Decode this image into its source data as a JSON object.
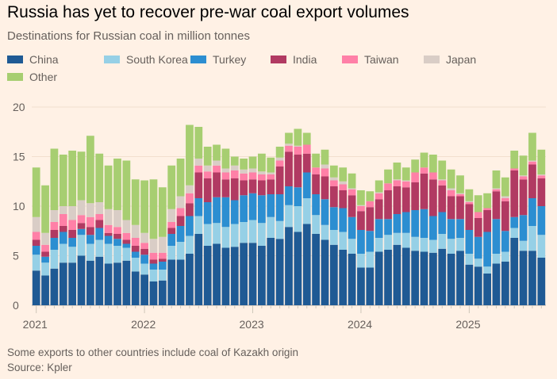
{
  "title": "Russia has yet to recover pre-war coal export volumes",
  "subtitle": "Destinations for Russian coal in million tonnes",
  "footnote": "Some exports to other countries include coal of Kazakh origin",
  "source": "Source: Kpler",
  "chart_data": {
    "type": "bar",
    "stacked": true,
    "title": "Russia has yet to recover pre-war coal export volumes",
    "subtitle": "Destinations for Russian coal in million tonnes",
    "xlabel": "",
    "ylabel": "million tonnes",
    "ylim": [
      0,
      20
    ],
    "yticks": [
      0,
      5,
      10,
      15,
      20
    ],
    "xtick_labels": [
      "2021",
      "2022",
      "2023",
      "2024",
      "2025"
    ],
    "grid": true,
    "legend_position": "top-left",
    "start": "2021-01",
    "categories": [
      "Jan 2021",
      "Feb 2021",
      "Mar 2021",
      "Apr 2021",
      "May 2021",
      "Jun 2021",
      "Jul 2021",
      "Aug 2021",
      "Sep 2021",
      "Oct 2021",
      "Nov 2021",
      "Dec 2021",
      "Jan 2022",
      "Feb 2022",
      "Mar 2022",
      "Apr 2022",
      "May 2022",
      "Jun 2022",
      "Jul 2022",
      "Aug 2022",
      "Sep 2022",
      "Oct 2022",
      "Nov 2022",
      "Dec 2022",
      "Jan 2023",
      "Feb 2023",
      "Mar 2023",
      "Apr 2023",
      "May 2023",
      "Jun 2023",
      "Jul 2023",
      "Aug 2023",
      "Sep 2023",
      "Oct 2023",
      "Nov 2023",
      "Dec 2023",
      "Jan 2024",
      "Feb 2024",
      "Mar 2024",
      "Apr 2024",
      "May 2024",
      "Jun 2024",
      "Jul 2024",
      "Aug 2024",
      "Sep 2024",
      "Oct 2024",
      "Nov 2024",
      "Dec 2024",
      "Jan 2025",
      "Feb 2025",
      "Mar 2025",
      "Apr 2025",
      "May 2025",
      "Jun 2025",
      "Jul 2025",
      "Aug 2025",
      "Sep 2025"
    ],
    "series": [
      {
        "name": "China",
        "color": "#1F5A94",
        "values": [
          3.5,
          3.0,
          3.7,
          4.3,
          4.3,
          5.0,
          4.5,
          4.9,
          4.2,
          4.3,
          4.5,
          3.4,
          3.1,
          2.4,
          2.5,
          4.6,
          4.6,
          5.2,
          7.2,
          6.0,
          6.2,
          5.8,
          5.9,
          6.3,
          6.3,
          6.0,
          6.8,
          6.7,
          7.9,
          7.4,
          8.2,
          7.2,
          6.6,
          6.1,
          5.6,
          5.2,
          3.8,
          3.8,
          5.4,
          5.6,
          6.1,
          5.8,
          5.5,
          5.4,
          5.3,
          5.7,
          5.2,
          5.5,
          4.1,
          3.9,
          3.2,
          4.2,
          4.4,
          6.8,
          5.5,
          5.5,
          4.8
        ]
      },
      {
        "name": "South Korea",
        "color": "#96D0E6",
        "values": [
          1.6,
          1.3,
          1.9,
          1.9,
          1.6,
          2.1,
          1.7,
          1.7,
          2.0,
          1.7,
          1.3,
          1.4,
          1.1,
          1.2,
          1.1,
          1.4,
          1.8,
          1.8,
          1.8,
          2.2,
          2.1,
          2.1,
          2.3,
          2.1,
          2.3,
          2.3,
          2.1,
          1.8,
          2.2,
          2.6,
          2.6,
          1.9,
          1.5,
          1.5,
          1.8,
          1.5,
          1.4,
          1.6,
          1.4,
          1.5,
          1.2,
          1.5,
          1.4,
          1.4,
          1.3,
          1.5,
          1.5,
          1.3,
          1.1,
          0.8,
          0.7,
          1.0,
          1.0,
          1.0,
          1.0,
          2.5,
          2.3
        ]
      },
      {
        "name": "Turkey",
        "color": "#2C8ED1",
        "values": [
          0.9,
          0.6,
          1.2,
          1.2,
          0.9,
          0.6,
          0.9,
          1.2,
          0.8,
          0.7,
          0.4,
          0.6,
          0.9,
          0.6,
          0.8,
          1.2,
          1.6,
          2.0,
          1.8,
          2.2,
          2.6,
          3.0,
          2.4,
          2.7,
          2.7,
          2.8,
          2.3,
          2.7,
          1.9,
          1.9,
          2.6,
          2.1,
          2.6,
          2.3,
          2.4,
          2.2,
          2.4,
          2.1,
          1.9,
          1.6,
          1.9,
          2.1,
          2.7,
          2.9,
          2.4,
          2.2,
          2.0,
          1.9,
          2.4,
          2.2,
          3.5,
          3.5,
          2.1,
          1.1,
          2.6,
          2.8,
          2.9
        ]
      },
      {
        "name": "India",
        "color": "#B13A62",
        "values": [
          0.6,
          0.5,
          0.8,
          0.6,
          0.8,
          0.6,
          0.8,
          0.8,
          0.3,
          0.5,
          0.4,
          0.6,
          0.6,
          0.4,
          0.3,
          0.6,
          1.0,
          1.3,
          2.6,
          2.4,
          2.5,
          1.8,
          2.2,
          1.5,
          1.4,
          1.5,
          1.5,
          2.8,
          3.5,
          3.3,
          1.9,
          2.0,
          2.3,
          2.1,
          1.8,
          2.2,
          1.9,
          2.4,
          2.0,
          2.9,
          2.8,
          2.5,
          2.8,
          3.6,
          3.7,
          2.7,
          2.3,
          2.3,
          2.6,
          1.9,
          2.2,
          2.8,
          3.0,
          4.7,
          3.6,
          3.4,
          2.8
        ]
      },
      {
        "name": "Taiwan",
        "color": "#FF80A7",
        "values": [
          0.8,
          0.7,
          0.8,
          1.2,
          1.0,
          0.8,
          1.0,
          0.6,
          0.8,
          0.7,
          0.7,
          0.8,
          0.6,
          0.7,
          0.6,
          0.6,
          0.8,
          1.0,
          0.7,
          0.7,
          0.7,
          0.7,
          0.8,
          0.7,
          0.7,
          0.6,
          0.5,
          0.6,
          0.6,
          0.8,
          0.9,
          0.7,
          0.8,
          0.6,
          0.6,
          0.6,
          0.5,
          0.6,
          0.6,
          0.7,
          0.6,
          0.6,
          1.0,
          0.6,
          0.7,
          0.5,
          0.6,
          0.2,
          0.2,
          0.6,
          0.2,
          0.2,
          0.3,
          0.2,
          0.3,
          0.3,
          0.3
        ]
      },
      {
        "name": "Japan",
        "color": "#D9CDC6",
        "values": [
          1.5,
          1.2,
          1.2,
          0.8,
          1.4,
          1.5,
          1.4,
          1.2,
          1.6,
          1.7,
          1.3,
          1.3,
          1.0,
          1.4,
          1.6,
          1.3,
          1.2,
          0.8,
          0.7,
          0.6,
          0.5,
          0.4,
          0.5,
          0.4,
          0.4,
          0.3,
          0.2,
          0.3,
          0.2,
          0.1,
          0.0,
          0.0,
          0.4,
          0.3,
          0.3,
          0.1,
          0.1,
          0.0,
          0.1,
          0.0,
          0.1,
          0.1,
          0.0,
          0.0,
          0.0,
          0.1,
          0.2,
          0.1,
          0.1,
          0.0,
          0.0,
          0.1,
          0.2,
          0.0,
          0.1,
          0.1,
          0.1
        ]
      },
      {
        "name": "Other",
        "color": "#A7CE71",
        "values": [
          5.0,
          4.8,
          6.2,
          5.2,
          5.6,
          4.9,
          6.8,
          4.9,
          4.4,
          5.2,
          6.0,
          4.6,
          5.3,
          6.0,
          5.0,
          4.4,
          3.8,
          6.1,
          3.2,
          1.9,
          1.6,
          2.0,
          0.9,
          1.1,
          1.2,
          1.8,
          1.5,
          1.1,
          1.1,
          1.7,
          1.2,
          1.4,
          1.5,
          1.2,
          1.4,
          1.5,
          1.5,
          1.0,
          1.2,
          1.4,
          1.7,
          1.3,
          1.3,
          1.5,
          1.8,
          1.9,
          1.9,
          1.8,
          1.2,
          1.7,
          1.5,
          1.8,
          1.9,
          1.8,
          2.0,
          2.8,
          2.5
        ]
      }
    ]
  }
}
